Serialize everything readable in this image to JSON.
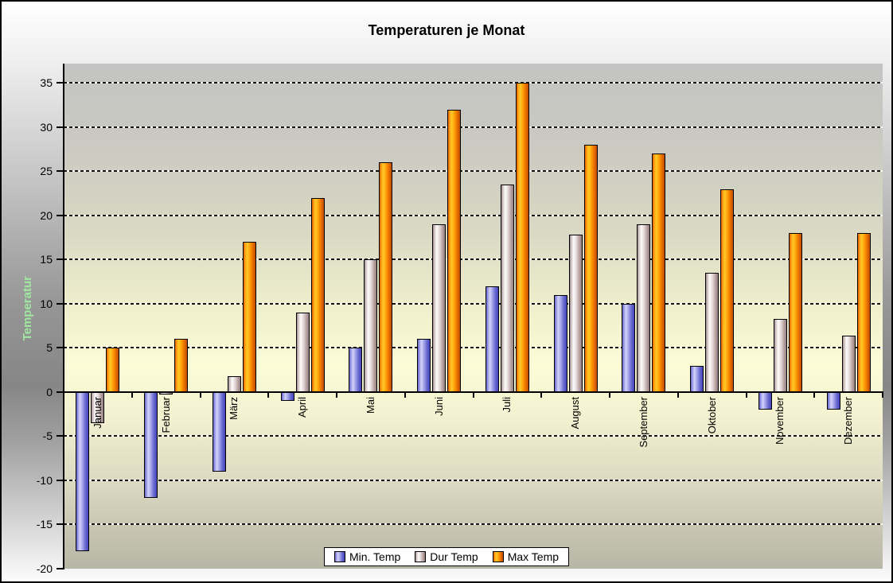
{
  "chart_data": {
    "type": "bar",
    "title": "Temperaturen je Monat",
    "ylabel": "Temperatur",
    "categories": [
      "Januar",
      "Februar",
      "März",
      "April",
      "Mai",
      "Juni",
      "Juli",
      "August",
      "September",
      "Oktober",
      "November",
      "Dezember"
    ],
    "series": [
      {
        "name": "Min. Temp",
        "key": "min",
        "values": [
          -18,
          -12,
          -9,
          -1,
          5,
          6,
          12,
          11,
          10,
          3,
          -2,
          -2
        ]
      },
      {
        "name": "Dur Temp",
        "key": "dur",
        "values": [
          -3.5,
          -0.3,
          1.8,
          9,
          15,
          19,
          23.5,
          17.8,
          19,
          13.5,
          8.3,
          6.4
        ]
      },
      {
        "name": "Max Temp",
        "key": "max",
        "values": [
          5,
          6,
          17,
          22,
          26,
          32,
          35,
          28,
          27,
          23,
          18,
          18
        ]
      }
    ],
    "y_axis": {
      "min": -20,
      "max": 37.2,
      "tick_step": 5,
      "tick_labels": [
        "35",
        "30",
        "25",
        "20",
        "15",
        "10",
        "5",
        "0",
        "-5",
        "-10",
        "-15",
        "-20"
      ]
    },
    "grid": "horizontal-dashed",
    "legend_position": "bottom-center",
    "colors": {
      "min_bar": "#6a6ace",
      "dur_bar": "#d8cccc",
      "max_bar": "#ff9404",
      "ylabel_text": "#a0e8a0",
      "title_text": "#000000",
      "plot_top": "#c3c3c3",
      "plot_middle": "#fcfcd7",
      "plot_bottom": "#b7b5a5",
      "gridline": "#141414",
      "legend_background": "#ffffff"
    }
  }
}
